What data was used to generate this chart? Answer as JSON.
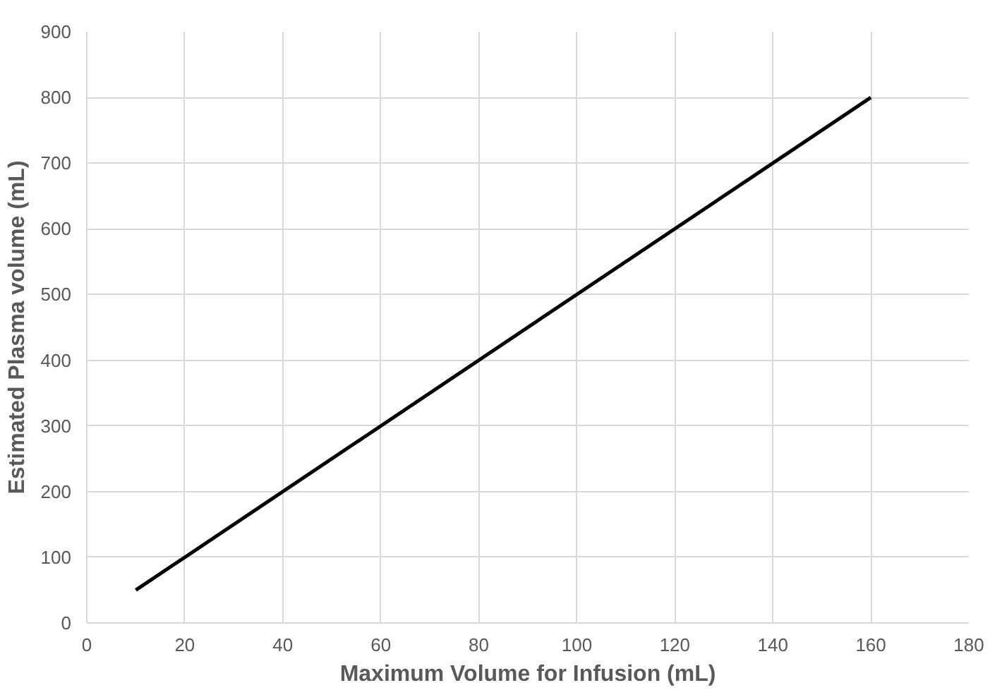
{
  "chart_data": {
    "type": "line",
    "xlabel": "Maximum Volume for Infusion (mL)",
    "ylabel": "Estimated Plasma volume (mL)",
    "series": [
      {
        "color": "#000000",
        "x": [
          10,
          160
        ],
        "values": [
          50,
          800
        ]
      }
    ],
    "xlim": [
      0,
      180
    ],
    "xticks": [
      0,
      20,
      40,
      60,
      80,
      100,
      120,
      140,
      160,
      180
    ],
    "ylim": [
      0,
      900
    ],
    "yticks": [
      0,
      100,
      200,
      300,
      400,
      500,
      600,
      700,
      800,
      900
    ],
    "grid": true,
    "line_style": "solid"
  }
}
